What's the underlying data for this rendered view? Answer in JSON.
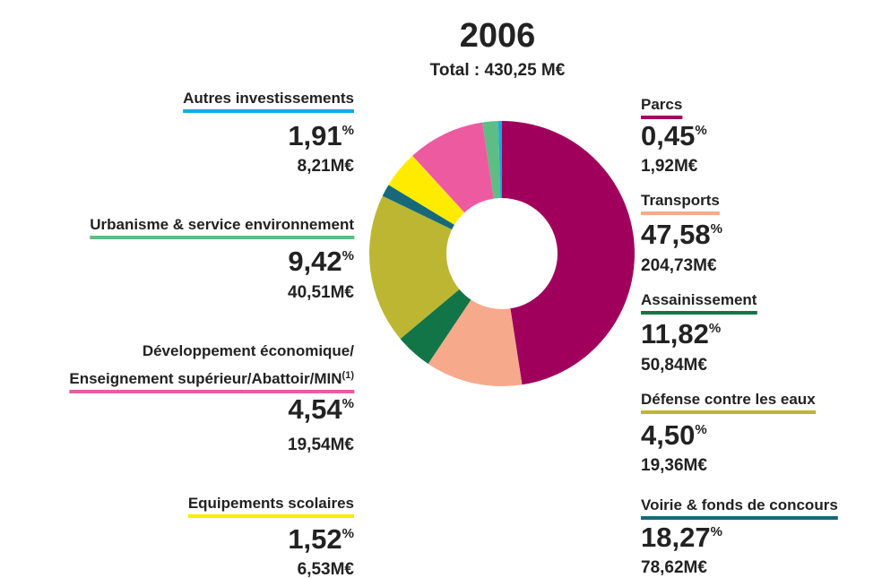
{
  "chart_data": {
    "type": "donut",
    "title": "2006",
    "subtitle": "Total : 430,25 M€",
    "percent_unit": "%",
    "items": [
      {
        "name": [
          "Parcs"
        ],
        "color": "#a0005c",
        "value": 0.45,
        "value_label": "0,45",
        "amount": "1,92M€"
      },
      {
        "name": [
          "Transports"
        ],
        "color": "#f7a98c",
        "value": 47.58,
        "value_label": "47,58",
        "amount": "204,73M€"
      },
      {
        "name": [
          "Assainissement"
        ],
        "color": "#127548",
        "value": 11.82,
        "value_label": "11,82",
        "amount": "50,84M€"
      },
      {
        "name": [
          "Défense contre les eaux"
        ],
        "color": "#bcb632",
        "value": 4.5,
        "value_label": "4,50",
        "amount": "19,36M€"
      },
      {
        "name": [
          "Voirie & fonds de concours"
        ],
        "color": "#17697a",
        "value": 18.27,
        "value_label": "18,27",
        "amount": "78,62M€"
      },
      {
        "name": [
          "Equipements scolaires"
        ],
        "color": "#ffeb00",
        "value": 1.52,
        "value_label": "1,52",
        "amount": "6,53M€"
      },
      {
        "name": [
          "Développement économique/",
          "Enseignement supérieur/Abattoir/MIN"
        ],
        "note": "(1)",
        "color": "#ee5aa0",
        "value": 4.54,
        "value_label": "4,54",
        "amount": "19,54M€"
      },
      {
        "name": [
          "Urbanisme & service environnement"
        ],
        "color": "#5dbd85",
        "value": 9.42,
        "value_label": "9,42",
        "amount": "40,51M€"
      },
      {
        "name": [
          "Autres investissements"
        ],
        "color": "#15a9e6",
        "value": 1.91,
        "value_label": "1,91",
        "amount": "8,21M€"
      }
    ]
  }
}
